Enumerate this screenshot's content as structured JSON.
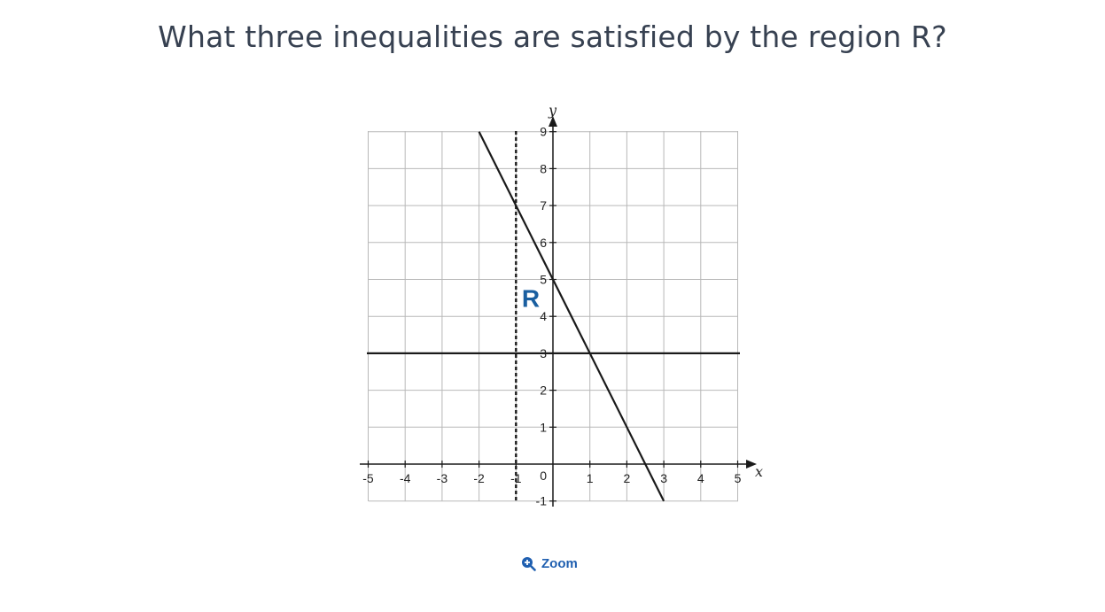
{
  "question": {
    "text": "What three inequalities are satisfied by the region R?"
  },
  "zoom": {
    "label": "Zoom",
    "icon": "zoom-in-icon"
  },
  "chart_data": {
    "type": "line",
    "xlabel": "x",
    "ylabel": "y",
    "xlim": [
      -5,
      5
    ],
    "ylim": [
      -1,
      9
    ],
    "x_ticks": [
      -5,
      -4,
      -3,
      -2,
      -1,
      1,
      2,
      3,
      4,
      5
    ],
    "y_ticks": [
      -1,
      1,
      2,
      3,
      4,
      5,
      6,
      7,
      8,
      9
    ],
    "origin_label": "0",
    "grid": true,
    "region_label": "R",
    "region_label_position": [
      -0.6,
      4.5
    ],
    "lines": [
      {
        "kind": "vertical",
        "x": -1,
        "style": "dashed"
      },
      {
        "kind": "horizontal",
        "y": 3,
        "style": "solid"
      },
      {
        "kind": "segment",
        "from": [
          -2,
          9
        ],
        "to": [
          3,
          -1
        ],
        "style": "solid"
      }
    ],
    "colors": {
      "lines": "#1a1a1a",
      "grid": "#b8b8b8",
      "region_label": "#1a5fa0"
    }
  }
}
